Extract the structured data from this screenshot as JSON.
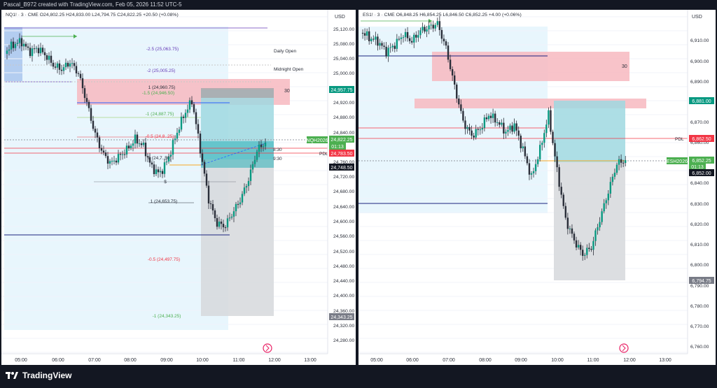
{
  "header_text": "Pascal_B972 created with TradingView.com, Feb 05, 2026 11:52 UTC-5",
  "brand": "TradingView",
  "left": {
    "symbol_line": "NQ1! · 3 · CME  O24,802.25  H24,833.00  L24,794.75  C24,822.25  +20.50 (+0.08%)",
    "currency": "USD",
    "y_ticks": [
      "25,120.00",
      "25,080.00",
      "25,040.00",
      "25,000.00",
      "24,920.00",
      "24,880.00",
      "24,840.00",
      "24,760.00",
      "24,720.00",
      "24,680.00",
      "24,640.00",
      "24,600.00",
      "24,560.00",
      "24,520.00",
      "24,480.00",
      "24,440.00",
      "24,400.00",
      "24,360.00",
      "24,320.00",
      "24,280.00"
    ],
    "x_ticks": [
      "05:00",
      "06:00",
      "07:00",
      "08:00",
      "09:00",
      "10:00",
      "11:00",
      "12:00",
      "13:00"
    ],
    "badges": [
      {
        "text": "24,957.75",
        "color": "#089981"
      },
      {
        "text": "NQH2026",
        "color": "#4caf50"
      },
      {
        "text": "24,822.25",
        "color": "#4caf50"
      },
      {
        "text": "01:13",
        "color": "#4caf50"
      },
      {
        "text": "24,783.50",
        "color": "#f23645"
      },
      {
        "text": "24,748.50",
        "color": "#131722"
      },
      {
        "text": "24,343.25",
        "color": "#787b86"
      }
    ],
    "fib_labels": [
      {
        "text": "-2.5 (25,063.75)",
        "color": "#673ab7"
      },
      {
        "text": "-2 (25,005.25)",
        "color": "#673ab7"
      },
      {
        "text": "1 (24,960.75)",
        "color": "#2a2e39"
      },
      {
        "text": "-1.5 (24,946.50)",
        "color": "#4caf50"
      },
      {
        "text": "-1 (24,887.75)",
        "color": "#4caf50"
      },
      {
        "text": "-0.5 (24,8..25)",
        "color": "#f23645"
      },
      {
        "text": "0 (24,7..50)",
        "color": "#2a2e39"
      },
      {
        "text": "$",
        "color": "#2a2e39"
      },
      {
        "text": "1 (24,653.75)",
        "color": "#2a2e39"
      },
      {
        "text": "-0.5 (24,497.75)",
        "color": "#f23645"
      },
      {
        "text": "-1 (24,343.25)",
        "color": "#4caf50"
      }
    ],
    "annotations": [
      "Daily Open",
      "Midnight Open",
      "30",
      "PDL",
      "8:30",
      "9:30"
    ]
  },
  "right": {
    "symbol_line": "ES1! · 3 · CME  O6,848.25  H6,854.25  L6,846.50  C6,852.25  +4.00 (+0.06%)",
    "currency": "USD",
    "y_ticks": [
      "6,910.00",
      "6,900.00",
      "6,890.00",
      "6,870.00",
      "6,860.00",
      "6,840.00",
      "6,830.00",
      "6,820.00",
      "6,810.00",
      "6,800.00",
      "6,790.00",
      "6,780.00",
      "6,770.00",
      "6,760.00"
    ],
    "x_ticks": [
      "05:00",
      "06:00",
      "07:00",
      "08:00",
      "09:00",
      "10:00",
      "11:00",
      "12:00",
      "13:00"
    ],
    "badges": [
      {
        "text": "6,881.00",
        "color": "#089981"
      },
      {
        "text": "6,862.50",
        "color": "#f23645"
      },
      {
        "text": "ESH2026",
        "color": "#4caf50"
      },
      {
        "text": "6,852.25",
        "color": "#4caf50"
      },
      {
        "text": "01:13",
        "color": "#4caf50"
      },
      {
        "text": "6,852.00",
        "color": "#131722"
      },
      {
        "text": "6,794.75",
        "color": "#787b86"
      }
    ],
    "annotations": [
      "30",
      "PDL"
    ]
  },
  "colors": {
    "up": "#089981",
    "down": "#2a2e39",
    "supply": "#f7b8c0",
    "target": "#9fd8e0",
    "grey": "#d6d8dc",
    "session": "#e8f6fd"
  }
}
